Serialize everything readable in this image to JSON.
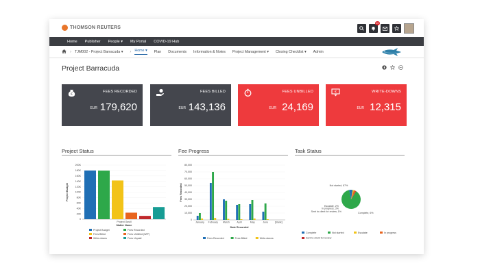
{
  "header": {
    "logo_text": "THOMSON REUTERS",
    "notification_count": "10",
    "icons": [
      "search-icon",
      "bell-icon",
      "mail-icon",
      "star-icon"
    ]
  },
  "nav": {
    "items": [
      "Home",
      "Publisher",
      "People ▾",
      "My Portal",
      "COVID-19 Hub"
    ]
  },
  "breadcrumb": {
    "project": "TJM002 - Project Barracuda ▾",
    "tabs": [
      "Home ▾",
      "Plan",
      "Documents",
      "Information & Notes",
      "Project Management ▾",
      "Closing Checklist ▾",
      "Admin"
    ],
    "active_index": 0
  },
  "page": {
    "title": "Project Barracuda"
  },
  "kpis": [
    {
      "label": "FEES RECORDED",
      "currency": "EUR",
      "value": "179,620",
      "color": "#44464d",
      "icon": "money-bag-icon"
    },
    {
      "label": "FEES BILLED",
      "currency": "EUR",
      "value": "143,136",
      "color": "#44464d",
      "icon": "hand-money-icon"
    },
    {
      "label": "FEES UNBILLED",
      "currency": "EUR",
      "value": "24,169",
      "color": "#ee3a3d",
      "icon": "stopwatch-icon"
    },
    {
      "label": "WRITE-DOWNS",
      "currency": "EUR",
      "value": "12,315",
      "color": "#ee3a3d",
      "icon": "writedown-icon"
    }
  ],
  "sections": {
    "project_status": "Project Status",
    "fee_progress": "Fee Progress",
    "task_status": "Task Status"
  },
  "chart_data": [
    {
      "type": "bar",
      "title": "Project Status",
      "xlabel": "Matter Name",
      "ylabel": "Project Budget",
      "ylim": [
        0,
        200000
      ],
      "yticks": [
        "0",
        "20K",
        "40K",
        "60K",
        "80K",
        "100K",
        "120K",
        "140K",
        "160K",
        "180K",
        "200K"
      ],
      "categories": [
        "Project Gavill"
      ],
      "series": [
        {
          "name": "Project Budget",
          "values": [
            180000
          ],
          "color": "#1f6fb5"
        },
        {
          "name": "Fees Recorded",
          "values": [
            179620
          ],
          "color": "#2ea84a"
        },
        {
          "name": "Fees Billed",
          "values": [
            143136
          ],
          "color": "#f2c318"
        },
        {
          "name": "Fees Unbilled (WIP)",
          "values": [
            24169
          ],
          "color": "#e8641e"
        },
        {
          "name": "Write-downs",
          "values": [
            12315
          ],
          "color": "#c0282b"
        },
        {
          "name": "Fees Unpaid",
          "values": [
            45000
          ],
          "color": "#179c94"
        }
      ],
      "legend": "bottom"
    },
    {
      "type": "bar",
      "title": "Fee Progress",
      "xlabel": "Date Recorded",
      "ylabel": "Fees Recorded",
      "ylim": [
        0,
        80000
      ],
      "yticks": [
        "0",
        "10,000",
        "20,000",
        "30,000",
        "40,000",
        "50,000",
        "60,000",
        "70,000",
        "80,000"
      ],
      "categories": [
        "January",
        "February",
        "March",
        "April",
        "May",
        "June",
        "[blank]"
      ],
      "series": [
        {
          "name": "Fees Recorded",
          "values": [
            6000,
            54000,
            30000,
            22000,
            23000,
            12000,
            0
          ],
          "color": "#1f6fb5"
        },
        {
          "name": "Fees Billed",
          "values": [
            10000,
            70000,
            28000,
            23000,
            29000,
            24000,
            0
          ],
          "color": "#2ea84a"
        },
        {
          "name": "Write-downs",
          "values": [
            2000,
            3000,
            1500,
            1000,
            2000,
            1000,
            0
          ],
          "color": "#f2c318"
        }
      ],
      "legend": "bottom"
    },
    {
      "type": "pie",
      "title": "Task Status",
      "slices": [
        {
          "name": "Not started",
          "value": 87,
          "label": "Not started, 87%",
          "color": "#2ea84a"
        },
        {
          "name": "Complete",
          "value": 6,
          "label": "Complete, 6%",
          "color": "#1f6fb5"
        },
        {
          "name": "Escalate",
          "value": 2,
          "label": "Escalate, 2%",
          "color": "#f2c318"
        },
        {
          "name": "In progress",
          "value": 3,
          "label": "In progress, 3%",
          "color": "#e8641e"
        },
        {
          "name": "Sent to client for review",
          "value": 1,
          "label": "Sent to client for review, 1%",
          "color": "#c0282b"
        }
      ],
      "legend_items": [
        "Complete",
        "Not started",
        "Escalate",
        "In progress",
        "Sent to client for review"
      ],
      "legend": "bottom"
    }
  ]
}
